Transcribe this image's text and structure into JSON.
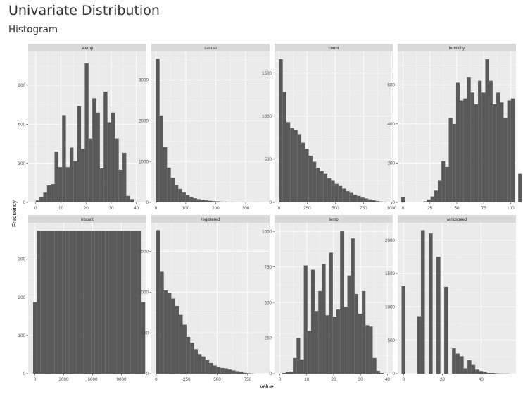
{
  "header": {
    "title": "Univariate Distribution",
    "subtitle": "Histogram"
  },
  "colors": {
    "bar": "#595959",
    "panel_bg": "#ebebeb",
    "strip_bg": "#d9d9d9",
    "grid_major": "#ffffff",
    "grid_minor": "#f5f5f5"
  },
  "chart_data": {
    "type": "bar",
    "xlabel": "value",
    "ylabel": "Frequency",
    "layout": "facet-wrap 4 columns, free scales",
    "grid": true,
    "facets": [
      {
        "name": "atemp",
        "bin_start": 0,
        "bin_width": 1.5,
        "values": [
          15,
          40,
          75,
          130,
          140,
          390,
          270,
          670,
          270,
          420,
          315,
          740,
          410,
          1070,
          490,
          800,
          690,
          260,
          850,
          615,
          690,
          490,
          250,
          380,
          50,
          25
        ],
        "xlim": [
          -3,
          44
        ],
        "ylim": [
          0,
          1160
        ],
        "xticks": [
          0,
          10,
          20,
          30,
          40
        ],
        "yticks": [
          0,
          300,
          600,
          900
        ]
      },
      {
        "name": "casual",
        "bin_start": 0,
        "bin_width": 12.5,
        "values": [
          3520,
          2130,
          1350,
          850,
          600,
          430,
          330,
          240,
          180,
          130,
          100,
          80,
          65,
          50,
          40,
          30,
          25,
          20,
          15,
          10,
          8,
          6,
          5,
          4,
          3,
          2,
          2,
          1,
          1
        ],
        "xlim": [
          -15,
          380
        ],
        "ylim": [
          0,
          3700
        ],
        "xticks": [
          0,
          100,
          200,
          300
        ],
        "yticks": [
          0,
          1000,
          2000,
          3000
        ]
      },
      {
        "name": "count",
        "bin_start": 0,
        "bin_width": 33,
        "values": [
          1660,
          1280,
          930,
          860,
          840,
          790,
          690,
          620,
          540,
          470,
          400,
          360,
          330,
          280,
          250,
          215,
          190,
          160,
          130,
          110,
          90,
          75,
          55,
          45,
          35,
          25,
          15,
          10,
          5
        ],
        "xlim": [
          -40,
          1010
        ],
        "ylim": [
          0,
          1750
        ],
        "xticks": [
          0,
          250,
          500,
          750,
          1000
        ],
        "yticks": [
          0,
          500,
          1000,
          1500
        ]
      },
      {
        "name": "humidity",
        "bin_start": -1.7,
        "bin_width": 3.4,
        "values": [
          25,
          0,
          0,
          0,
          0,
          0,
          5,
          15,
          30,
          60,
          110,
          210,
          180,
          430,
          400,
          610,
          520,
          530,
          640,
          560,
          500,
          620,
          560,
          730,
          620,
          500,
          560,
          510,
          430,
          520,
          530,
          0,
          145
        ],
        "xlim": [
          -5,
          105
        ],
        "ylim": [
          0,
          770
        ],
        "xticks": [
          0,
          25,
          50,
          75,
          100
        ],
        "yticks": [
          0,
          200,
          400,
          600
        ]
      },
      {
        "name": "instant",
        "bin_start": -188,
        "bin_width": 376,
        "values": [
          187,
          374,
          374,
          374,
          374,
          374,
          374,
          374,
          374,
          374,
          374,
          374,
          374,
          374,
          374,
          374,
          374,
          374,
          374,
          374,
          374,
          374,
          374,
          374,
          374,
          374,
          374,
          374,
          374,
          374,
          187
        ],
        "xlim": [
          -700,
          11600
        ],
        "ylim": [
          0,
          395
        ],
        "xticks": [
          0,
          3000,
          6000,
          9000
        ],
        "yticks": [
          0,
          100,
          200,
          300
        ]
      },
      {
        "name": "registered",
        "bin_start": 0,
        "bin_width": 31,
        "values": [
          1760,
          1250,
          1020,
          990,
          920,
          830,
          720,
          600,
          450,
          380,
          300,
          240,
          210,
          170,
          130,
          100,
          85,
          70,
          65,
          50,
          40,
          30,
          20,
          10,
          5,
          2
        ],
        "xlim": [
          -40,
          930
        ],
        "ylim": [
          0,
          1850
        ],
        "xticks": [
          0,
          250,
          500,
          750
        ],
        "yticks": [
          0,
          500,
          1000,
          1500
        ]
      },
      {
        "name": "temp",
        "bin_start": 0.8,
        "bin_width": 1.35,
        "values": [
          5,
          10,
          15,
          110,
          250,
          100,
          760,
          300,
          730,
          440,
          580,
          770,
          410,
          850,
          400,
          450,
          1000,
          470,
          690,
          950,
          560,
          420,
          580,
          340,
          330,
          110,
          20,
          5
        ],
        "xlim": [
          -2,
          42
        ],
        "ylim": [
          0,
          1060
        ],
        "xticks": [
          0,
          10,
          20,
          30,
          40
        ],
        "yticks": [
          0,
          250,
          500,
          750,
          1000
        ]
      },
      {
        "name": "windspeed",
        "bin_start": -1,
        "bin_width": 2,
        "values": [
          1310,
          0,
          0,
          0,
          860,
          2150,
          0,
          2100,
          0,
          1750,
          0,
          1300,
          0,
          380,
          300,
          260,
          80,
          200,
          130,
          60,
          40,
          30,
          10,
          10,
          5,
          3,
          2,
          2,
          0
        ],
        "xlim": [
          -3,
          58
        ],
        "ylim": [
          0,
          2260
        ],
        "xticks": [
          0,
          20,
          40
        ],
        "yticks": [
          0,
          500,
          1000,
          1500,
          2000
        ]
      }
    ]
  }
}
